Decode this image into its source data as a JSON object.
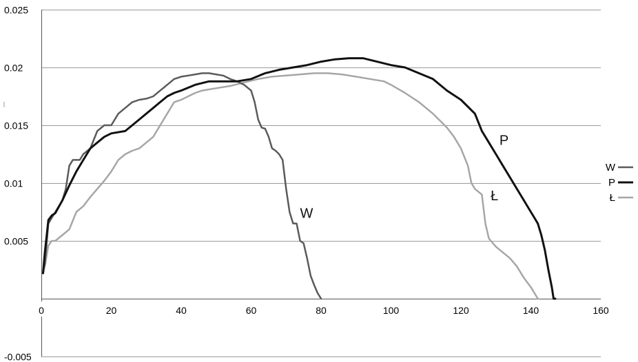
{
  "chart_data": {
    "type": "line",
    "title": "",
    "xlabel": "",
    "ylabel": "",
    "xlim": [
      0,
      160
    ],
    "ylim": [
      -0.005,
      0.025
    ],
    "x_ticks": [
      0,
      20,
      40,
      60,
      80,
      100,
      120,
      140,
      160
    ],
    "x_tick_labels": [
      "0",
      "20",
      "40",
      "60",
      "80",
      "100",
      "120",
      "140",
      "160"
    ],
    "y_ticks": [
      -0.005,
      0.005,
      0.01,
      0.015,
      0.02,
      0.025
    ],
    "y_tick_labels": [
      "-0.005",
      "0.005",
      "0.01",
      "0.015",
      "0.02",
      "0.025"
    ],
    "grid": true,
    "legend": {
      "position": "right",
      "entries": [
        "W",
        "P",
        "Ł"
      ]
    },
    "series": [
      {
        "name": "W",
        "label": "W",
        "label_at": [
          74,
          0.007
        ],
        "color": "#5a5a5a",
        "width": 2.5,
        "points": [
          [
            0.5,
            0.0025
          ],
          [
            1,
            0.003
          ],
          [
            2,
            0.0065
          ],
          [
            3,
            0.007
          ],
          [
            4,
            0.0075
          ],
          [
            5,
            0.008
          ],
          [
            6,
            0.0085
          ],
          [
            7,
            0.0095
          ],
          [
            8,
            0.0115
          ],
          [
            9,
            0.012
          ],
          [
            10,
            0.012
          ],
          [
            11,
            0.012
          ],
          [
            12,
            0.0125
          ],
          [
            14,
            0.013
          ],
          [
            16,
            0.0145
          ],
          [
            18,
            0.015
          ],
          [
            20,
            0.015
          ],
          [
            22,
            0.016
          ],
          [
            24,
            0.0165
          ],
          [
            26,
            0.017
          ],
          [
            28,
            0.0172
          ],
          [
            30,
            0.0173
          ],
          [
            32,
            0.0175
          ],
          [
            34,
            0.018
          ],
          [
            36,
            0.0185
          ],
          [
            38,
            0.019
          ],
          [
            40,
            0.0192
          ],
          [
            42,
            0.0193
          ],
          [
            44,
            0.0194
          ],
          [
            46,
            0.0195
          ],
          [
            48,
            0.0195
          ],
          [
            50,
            0.0194
          ],
          [
            52,
            0.0193
          ],
          [
            54,
            0.019
          ],
          [
            56,
            0.0188
          ],
          [
            58,
            0.0185
          ],
          [
            60,
            0.018
          ],
          [
            61,
            0.017
          ],
          [
            62,
            0.0155
          ],
          [
            63,
            0.0148
          ],
          [
            64,
            0.0147
          ],
          [
            65,
            0.014
          ],
          [
            66,
            0.013
          ],
          [
            67,
            0.0128
          ],
          [
            68,
            0.0125
          ],
          [
            69,
            0.012
          ],
          [
            70,
            0.0095
          ],
          [
            71,
            0.0075
          ],
          [
            72,
            0.0065
          ],
          [
            73,
            0.0065
          ],
          [
            74,
            0.005
          ],
          [
            75,
            0.0048
          ],
          [
            76,
            0.0035
          ],
          [
            77,
            0.002
          ],
          [
            78,
            0.0012
          ],
          [
            79,
            0.0005
          ],
          [
            80,
            0.0
          ]
        ]
      },
      {
        "name": "P",
        "label": "P",
        "label_at": [
          131,
          0.0133
        ],
        "color": "#111111",
        "width": 3,
        "points": [
          [
            0.5,
            0.0022
          ],
          [
            1,
            0.004
          ],
          [
            2,
            0.0068
          ],
          [
            3,
            0.0072
          ],
          [
            4,
            0.0074
          ],
          [
            6,
            0.0085
          ],
          [
            8,
            0.0098
          ],
          [
            10,
            0.011
          ],
          [
            12,
            0.012
          ],
          [
            14,
            0.013
          ],
          [
            16,
            0.0135
          ],
          [
            18,
            0.014
          ],
          [
            20,
            0.0143
          ],
          [
            24,
            0.0145
          ],
          [
            26,
            0.015
          ],
          [
            28,
            0.0155
          ],
          [
            30,
            0.016
          ],
          [
            32,
            0.0165
          ],
          [
            34,
            0.017
          ],
          [
            36,
            0.0175
          ],
          [
            38,
            0.0178
          ],
          [
            40,
            0.018
          ],
          [
            44,
            0.0185
          ],
          [
            48,
            0.0188
          ],
          [
            52,
            0.0188
          ],
          [
            56,
            0.0188
          ],
          [
            60,
            0.019
          ],
          [
            64,
            0.0195
          ],
          [
            68,
            0.0198
          ],
          [
            72,
            0.02
          ],
          [
            76,
            0.0202
          ],
          [
            80,
            0.0205
          ],
          [
            84,
            0.0207
          ],
          [
            88,
            0.0208
          ],
          [
            92,
            0.0208
          ],
          [
            96,
            0.0205
          ],
          [
            100,
            0.0202
          ],
          [
            104,
            0.02
          ],
          [
            108,
            0.0195
          ],
          [
            112,
            0.019
          ],
          [
            116,
            0.018
          ],
          [
            120,
            0.0172
          ],
          [
            124,
            0.016
          ],
          [
            126,
            0.0145
          ],
          [
            128,
            0.0135
          ],
          [
            130,
            0.0125
          ],
          [
            132,
            0.0115
          ],
          [
            134,
            0.0105
          ],
          [
            136,
            0.0095
          ],
          [
            138,
            0.0085
          ],
          [
            140,
            0.0075
          ],
          [
            141,
            0.007
          ],
          [
            142,
            0.0065
          ],
          [
            143,
            0.0055
          ],
          [
            144,
            0.0042
          ],
          [
            145,
            0.0025
          ],
          [
            146,
            0.001
          ],
          [
            146.5,
            0.0
          ],
          [
            147,
            0.0
          ]
        ]
      },
      {
        "name": "Ł",
        "label": "Ł",
        "label_at": [
          128.5,
          0.0085
        ],
        "color": "#a6a6a6",
        "width": 2.5,
        "points": [
          [
            0.5,
            0.0022
          ],
          [
            1,
            0.0028
          ],
          [
            2,
            0.0046
          ],
          [
            3,
            0.005
          ],
          [
            4,
            0.005
          ],
          [
            6,
            0.0055
          ],
          [
            8,
            0.006
          ],
          [
            10,
            0.0075
          ],
          [
            12,
            0.008
          ],
          [
            14,
            0.0088
          ],
          [
            16,
            0.0095
          ],
          [
            18,
            0.0102
          ],
          [
            20,
            0.011
          ],
          [
            22,
            0.012
          ],
          [
            24,
            0.0125
          ],
          [
            26,
            0.0128
          ],
          [
            28,
            0.013
          ],
          [
            30,
            0.0135
          ],
          [
            32,
            0.014
          ],
          [
            34,
            0.015
          ],
          [
            36,
            0.016
          ],
          [
            38,
            0.017
          ],
          [
            40,
            0.0172
          ],
          [
            42,
            0.0175
          ],
          [
            44,
            0.0178
          ],
          [
            46,
            0.018
          ],
          [
            50,
            0.0182
          ],
          [
            54,
            0.0184
          ],
          [
            58,
            0.0187
          ],
          [
            62,
            0.019
          ],
          [
            66,
            0.0192
          ],
          [
            70,
            0.0193
          ],
          [
            74,
            0.0194
          ],
          [
            78,
            0.0195
          ],
          [
            82,
            0.0195
          ],
          [
            86,
            0.0194
          ],
          [
            90,
            0.0192
          ],
          [
            94,
            0.019
          ],
          [
            98,
            0.0188
          ],
          [
            100,
            0.0185
          ],
          [
            104,
            0.0178
          ],
          [
            108,
            0.017
          ],
          [
            112,
            0.016
          ],
          [
            116,
            0.0148
          ],
          [
            118,
            0.014
          ],
          [
            120,
            0.013
          ],
          [
            122,
            0.0115
          ],
          [
            123,
            0.01
          ],
          [
            124,
            0.0095
          ],
          [
            126,
            0.009
          ],
          [
            127,
            0.0065
          ],
          [
            128,
            0.0052
          ],
          [
            130,
            0.0045
          ],
          [
            132,
            0.004
          ],
          [
            134,
            0.0035
          ],
          [
            136,
            0.0028
          ],
          [
            138,
            0.0018
          ],
          [
            140,
            0.001
          ],
          [
            141,
            0.0005
          ],
          [
            142,
            0.0
          ]
        ]
      }
    ]
  }
}
